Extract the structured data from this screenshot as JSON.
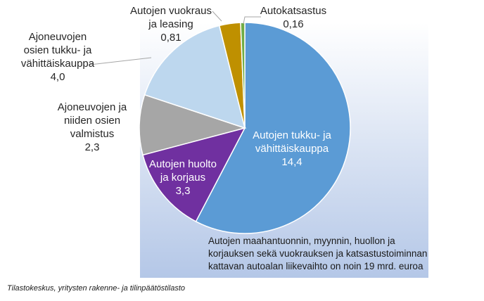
{
  "chart_data": {
    "type": "pie",
    "slices": [
      {
        "label": "Autojen tukku- ja vähittäiskauppa",
        "lines": [
          "Autojen tukku- ja",
          "vähittäiskauppa"
        ],
        "value_text": "14,4",
        "value": 14.4,
        "color": "#5b9bd5",
        "inside": true
      },
      {
        "label": "Autojen huolto ja korjaus",
        "lines": [
          "Autojen huolto",
          "ja korjaus"
        ],
        "value_text": "3,3",
        "value": 3.3,
        "color": "#7030a0",
        "inside": true
      },
      {
        "label": "Ajoneuvojen ja niiden osien valmistus",
        "lines": [
          "Ajoneuvojen ja",
          "niiden osien",
          "valmistus"
        ],
        "value_text": "2,3",
        "value": 2.3,
        "color": "#a6a6a6",
        "inside": false
      },
      {
        "label": "Ajoneuvojen osien tukku- ja vähittäiskauppa",
        "lines": [
          "Ajoneuvojen",
          "osien tukku- ja",
          "vähittäiskauppa"
        ],
        "value_text": "4,0",
        "value": 4.0,
        "color": "#bdd7ee",
        "inside": false
      },
      {
        "label": "Autojen vuokraus ja leasing",
        "lines": [
          "Autojen vuokraus",
          "ja leasing"
        ],
        "value_text": "0,81",
        "value": 0.81,
        "color": "#bf9000",
        "inside": false
      },
      {
        "label": "Autokatsastus",
        "lines": [
          "Autokatsastus"
        ],
        "value_text": "0,16",
        "value": 0.16,
        "color": "#70ad47",
        "inside": false
      }
    ],
    "note": [
      "Autojen maahantuonnin, myynnin, huollon ja",
      "korjauksen sekä vuokrauksen ja katsastustoiminnan",
      "kattavan autoalan liikevaihto on noin 19 mrd. euroa"
    ]
  },
  "source": "Tilastokeskus, yritysten rakenne- ja tilinpäätöstilasto"
}
